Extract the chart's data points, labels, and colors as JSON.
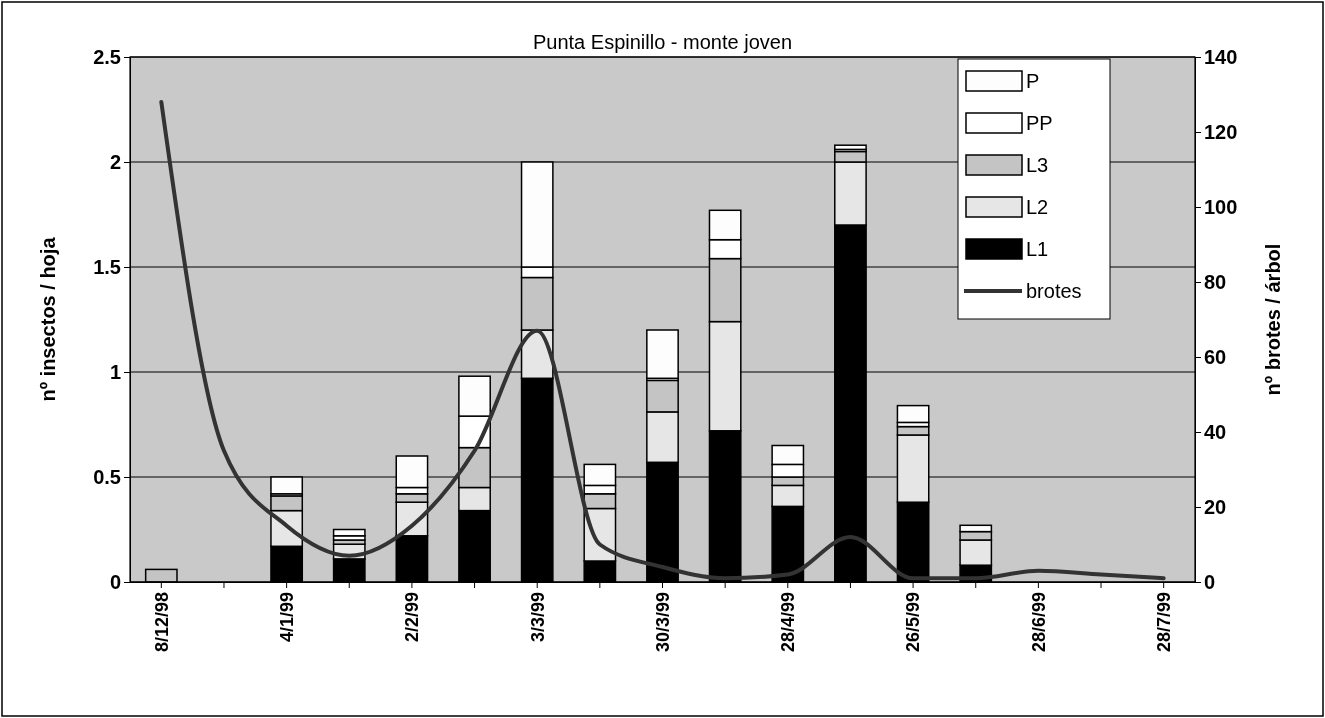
{
  "chart_data": {
    "type": "bar",
    "stacked": true,
    "title": "Punta Espinillo - monte joven",
    "ylabel": "nº insectos / hoja",
    "y2label": "nº brotes / árbol",
    "categories": [
      "8/12/98",
      null,
      "4/1/99",
      null,
      "2/2/99",
      null,
      "3/3/99",
      null,
      "30/3/99",
      null,
      "28/4/99",
      null,
      "26/5/99",
      null,
      "28/6/99",
      null,
      "28/7/99"
    ],
    "series": [
      {
        "name": "L1",
        "color": "#000000",
        "values": [
          0,
          0,
          0.17,
          0.11,
          0.22,
          0.34,
          0.97,
          0.1,
          0.57,
          0.72,
          0.36,
          1.7,
          0.38,
          0.08,
          0,
          0,
          0
        ]
      },
      {
        "name": "L2",
        "color": "#e6e6e6",
        "values": [
          0,
          0,
          0.17,
          0.07,
          0.16,
          0.11,
          0.23,
          0.25,
          0.24,
          0.52,
          0.1,
          0.3,
          0.32,
          0.12,
          0,
          0,
          0
        ]
      },
      {
        "name": "L3",
        "color": "#c4c4c4",
        "values": [
          0.06,
          0,
          0.07,
          0.02,
          0.04,
          0.19,
          0.25,
          0.07,
          0.15,
          0.3,
          0.04,
          0.05,
          0.04,
          0.04,
          0,
          0,
          0
        ]
      },
      {
        "name": "PP",
        "color": "#ffffff",
        "values": [
          0,
          0,
          0.01,
          0.02,
          0.03,
          0.15,
          0.05,
          0.04,
          0.01,
          0.09,
          0.06,
          0.01,
          0.02,
          0,
          0,
          0,
          0
        ]
      },
      {
        "name": "P",
        "color": "#fdfdfd",
        "values": [
          0,
          0,
          0.08,
          0.03,
          0.15,
          0.19,
          0.5,
          0.1,
          0.23,
          0.14,
          0.09,
          0.02,
          0.08,
          0.03,
          0,
          0,
          0
        ]
      },
      {
        "name": "brotes",
        "type": "line",
        "axis": "y2",
        "color": "#333333",
        "values": [
          128,
          35,
          15,
          7,
          15,
          35,
          67,
          10,
          4,
          1,
          2,
          12,
          1,
          1,
          3,
          2,
          1
        ]
      }
    ],
    "ylim": [
      0,
      2.5
    ],
    "yticks": [
      0,
      0.5,
      1,
      1.5,
      2,
      2.5
    ],
    "y2lim": [
      0,
      140
    ],
    "y2ticks": [
      0,
      20,
      40,
      60,
      80,
      100,
      120,
      140
    ],
    "grid": "y",
    "legend": "top right"
  }
}
